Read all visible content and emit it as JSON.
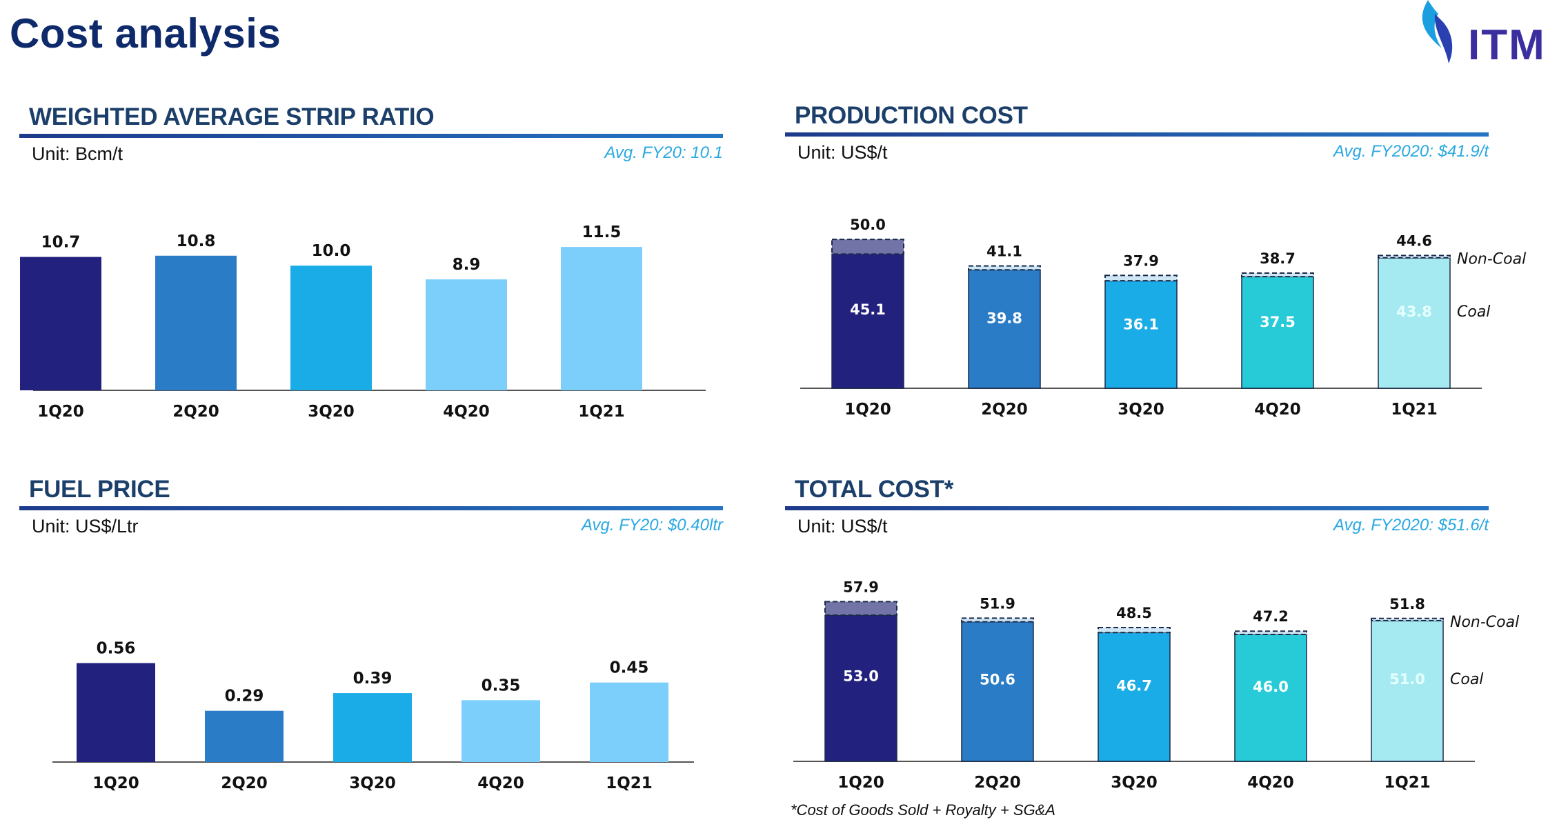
{
  "page": {
    "title": "Cost analysis",
    "logo_text": "ITM",
    "footnote": "*Cost of Goods Sold + Royalty + SG&A"
  },
  "colors": {
    "q1": "#23217e",
    "q2": "#2b7cc6",
    "q3": "#1aace6",
    "q4_light": "#7dcffb",
    "q4_cyan": "#27cbd8",
    "q5_light": "#7dcffb",
    "q5_pale": "#a5eaf1",
    "noncoal_q1": "#7273a6",
    "noncoal_other": "#cfe6f5"
  },
  "chart_data": [
    {
      "id": "strip",
      "type": "bar",
      "title": "WEIGHTED AVERAGE STRIP RATIO",
      "unit": "Unit: Bcm/t",
      "avg": "Avg. FY20: 10.1",
      "categories": [
        "1Q20",
        "2Q20",
        "3Q20",
        "4Q20",
        "1Q21"
      ],
      "values": [
        10.7,
        10.8,
        10.0,
        8.9,
        11.5
      ],
      "labels": [
        "10.7",
        "10.8",
        "10.0",
        "8.9",
        "11.5"
      ],
      "ylim": [
        0,
        13
      ]
    },
    {
      "id": "production",
      "type": "bar",
      "stacked": true,
      "title": "PRODUCTION COST",
      "unit": "Unit: US$/t",
      "avg": "Avg. FY2020: $41.9/t",
      "categories": [
        "1Q20",
        "2Q20",
        "3Q20",
        "4Q20",
        "1Q21"
      ],
      "series": [
        {
          "name": "Coal",
          "values": [
            45.1,
            39.8,
            36.1,
            37.5,
            43.8
          ],
          "labels": [
            "45.1",
            "39.8",
            "36.1",
            "37.5",
            "43.8"
          ]
        },
        {
          "name": "Non-Coal",
          "values": [
            4.9,
            1.3,
            1.8,
            1.2,
            0.8
          ]
        }
      ],
      "totals": [
        50.0,
        41.1,
        37.9,
        38.7,
        44.6
      ],
      "total_labels": [
        "50.0",
        "41.1",
        "37.9",
        "38.7",
        "44.6"
      ],
      "ylim": [
        0,
        60
      ]
    },
    {
      "id": "fuel",
      "type": "bar",
      "title": "FUEL PRICE",
      "unit": "Unit: US$/Ltr",
      "avg": "Avg. FY20: $0.40ltr",
      "categories": [
        "1Q20",
        "2Q20",
        "3Q20",
        "4Q20",
        "1Q21"
      ],
      "values": [
        0.56,
        0.29,
        0.39,
        0.35,
        0.45
      ],
      "labels": [
        "0.56",
        "0.29",
        "0.39",
        "0.35",
        "0.45"
      ],
      "ylim": [
        0,
        0.8
      ]
    },
    {
      "id": "total",
      "type": "bar",
      "stacked": true,
      "title": "TOTAL COST*",
      "unit": "Unit: US$/t",
      "avg": "Avg. FY2020: $51.6/t",
      "categories": [
        "1Q20",
        "2Q20",
        "3Q20",
        "4Q20",
        "1Q21"
      ],
      "series": [
        {
          "name": "Coal",
          "values": [
            53.0,
            50.6,
            46.7,
            46.0,
            51.0
          ],
          "labels": [
            "53.0",
            "50.6",
            "46.7",
            "46.0",
            "51.0"
          ]
        },
        {
          "name": "Non-Coal",
          "values": [
            4.9,
            1.3,
            1.8,
            1.2,
            0.8
          ]
        }
      ],
      "totals": [
        57.9,
        51.9,
        48.5,
        47.2,
        51.8
      ],
      "total_labels": [
        "57.9",
        "51.9",
        "48.5",
        "47.2",
        "51.8"
      ],
      "ylim": [
        0,
        75
      ]
    }
  ]
}
